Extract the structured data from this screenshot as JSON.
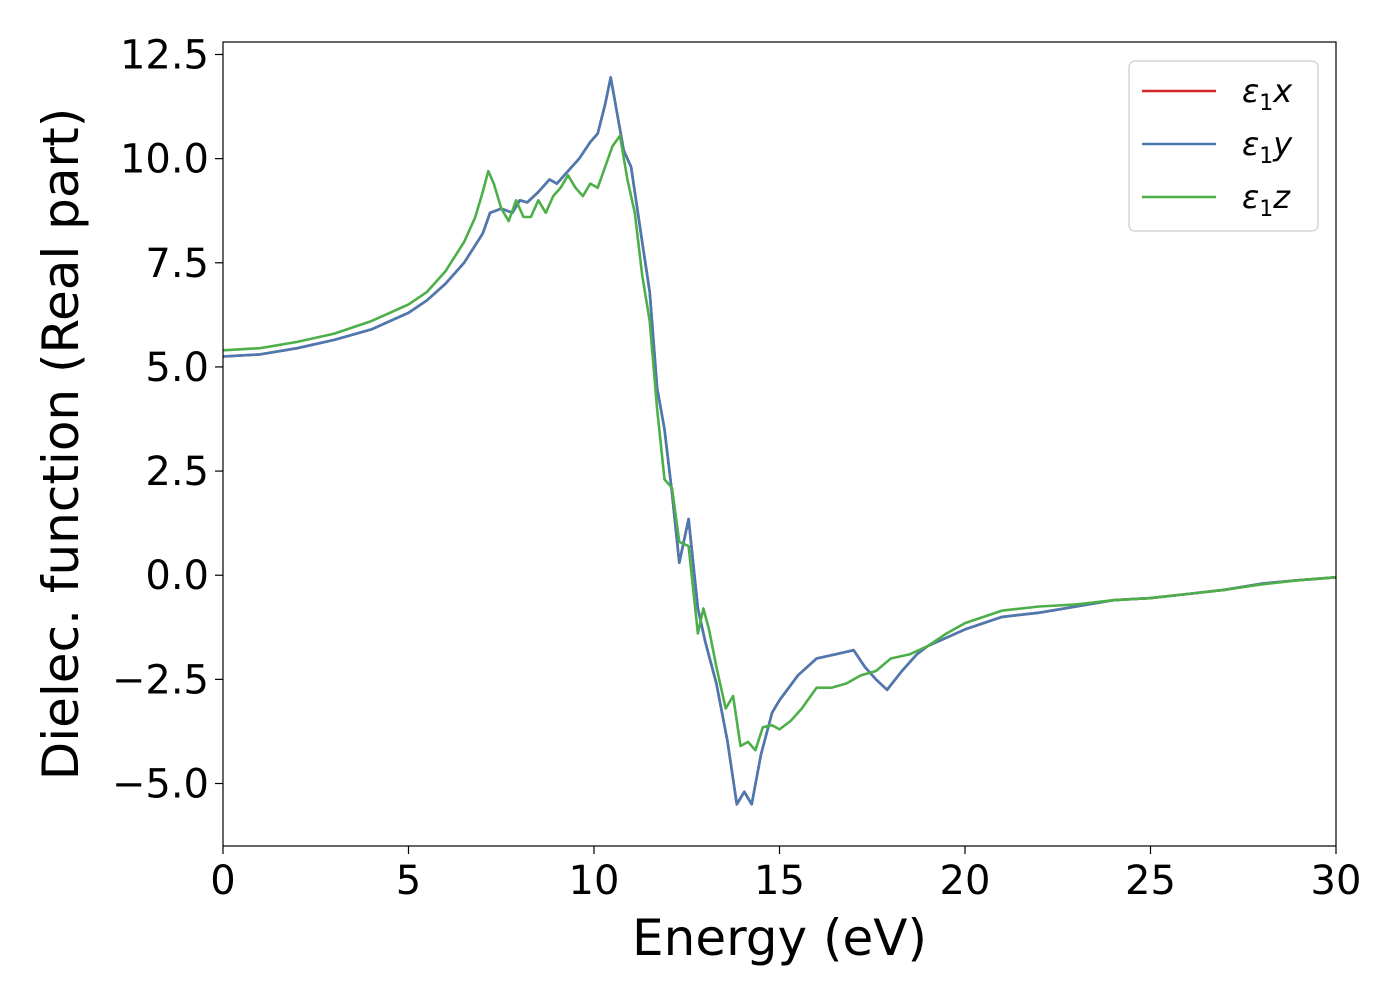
{
  "chart_data": {
    "type": "line",
    "xlabel": "Energy (eV)",
    "ylabel": "Dielec. function (Real part)",
    "xlim": [
      0,
      30
    ],
    "ylim": [
      -6.5,
      12.8
    ],
    "xticks": [
      0,
      5,
      10,
      15,
      20,
      25,
      30
    ],
    "yticks": [
      -5.0,
      -2.5,
      0.0,
      2.5,
      5.0,
      7.5,
      10.0,
      12.5
    ],
    "xtick_labels": [
      "0",
      "5",
      "10",
      "15",
      "20",
      "25",
      "30"
    ],
    "ytick_labels": [
      "−5.0",
      "−2.5",
      "0.0",
      "2.5",
      "5.0",
      "7.5",
      "10.0",
      "12.5"
    ],
    "grid": false,
    "legend": {
      "placement": "top-right",
      "entries": [
        {
          "prefix": "ε",
          "sub": "1",
          "suffix": "x",
          "color": "#d62728"
        },
        {
          "prefix": "ε",
          "sub": "1",
          "suffix": "y",
          "color": "#4a7ab2"
        },
        {
          "prefix": "ε",
          "sub": "1",
          "suffix": "z",
          "color": "#4daf4a"
        }
      ]
    },
    "series": [
      {
        "name": "ε1x",
        "color": "#d62728",
        "x": [
          0,
          1,
          2,
          3,
          4,
          5,
          5.5,
          6,
          6.5,
          7,
          7.2,
          7.5,
          7.8,
          8,
          8.2,
          8.5,
          8.8,
          9,
          9.3,
          9.6,
          9.9,
          10.1,
          10.3,
          10.45,
          10.6,
          10.8,
          11,
          11.3,
          11.5,
          11.7,
          11.9,
          12.1,
          12.3,
          12.55,
          12.8,
          13,
          13.3,
          13.6,
          13.85,
          14.05,
          14.25,
          14.5,
          14.8,
          15,
          15.5,
          16,
          16.5,
          17,
          17.3,
          17.6,
          17.9,
          18.3,
          18.7,
          19,
          19.5,
          20,
          21,
          22,
          23,
          24,
          25,
          26,
          27,
          28,
          29,
          30
        ],
        "y": [
          5.25,
          5.3,
          5.45,
          5.65,
          5.9,
          6.3,
          6.6,
          7.0,
          7.5,
          8.2,
          8.7,
          8.8,
          8.7,
          9.0,
          8.95,
          9.2,
          9.5,
          9.4,
          9.7,
          10.0,
          10.4,
          10.6,
          11.3,
          11.95,
          11.2,
          10.2,
          9.8,
          8.0,
          6.8,
          4.5,
          3.5,
          2.0,
          0.3,
          1.35,
          -0.8,
          -1.6,
          -2.6,
          -4.0,
          -5.5,
          -5.2,
          -5.5,
          -4.3,
          -3.3,
          -3.0,
          -2.4,
          -2.0,
          -1.9,
          -1.8,
          -2.2,
          -2.5,
          -2.75,
          -2.3,
          -1.9,
          -1.7,
          -1.5,
          -1.3,
          -1.0,
          -0.9,
          -0.75,
          -0.6,
          -0.55,
          -0.45,
          -0.35,
          -0.2,
          -0.12,
          -0.05
        ]
      },
      {
        "name": "ε1y",
        "color": "#4a7ab2",
        "x": [
          0,
          1,
          2,
          3,
          4,
          5,
          5.5,
          6,
          6.5,
          7,
          7.2,
          7.5,
          7.8,
          8,
          8.2,
          8.5,
          8.8,
          9,
          9.3,
          9.6,
          9.9,
          10.1,
          10.3,
          10.45,
          10.6,
          10.8,
          11,
          11.3,
          11.5,
          11.7,
          11.9,
          12.1,
          12.3,
          12.55,
          12.8,
          13,
          13.3,
          13.6,
          13.85,
          14.05,
          14.25,
          14.5,
          14.8,
          15,
          15.5,
          16,
          16.5,
          17,
          17.3,
          17.6,
          17.9,
          18.3,
          18.7,
          19,
          19.5,
          20,
          21,
          22,
          23,
          24,
          25,
          26,
          27,
          28,
          29,
          30
        ],
        "y": [
          5.25,
          5.3,
          5.45,
          5.65,
          5.9,
          6.3,
          6.6,
          7.0,
          7.5,
          8.2,
          8.7,
          8.8,
          8.7,
          9.0,
          8.95,
          9.2,
          9.5,
          9.4,
          9.7,
          10.0,
          10.4,
          10.6,
          11.3,
          11.95,
          11.2,
          10.2,
          9.8,
          8.0,
          6.8,
          4.5,
          3.5,
          2.0,
          0.3,
          1.35,
          -0.8,
          -1.6,
          -2.6,
          -4.0,
          -5.5,
          -5.2,
          -5.5,
          -4.3,
          -3.3,
          -3.0,
          -2.4,
          -2.0,
          -1.9,
          -1.8,
          -2.2,
          -2.5,
          -2.75,
          -2.3,
          -1.9,
          -1.7,
          -1.5,
          -1.3,
          -1.0,
          -0.9,
          -0.75,
          -0.6,
          -0.55,
          -0.45,
          -0.35,
          -0.2,
          -0.12,
          -0.05
        ]
      },
      {
        "name": "ε1z",
        "color": "#4daf4a",
        "x": [
          0,
          1,
          2,
          3,
          4,
          5,
          5.5,
          6,
          6.5,
          6.8,
          7.0,
          7.15,
          7.3,
          7.5,
          7.7,
          7.9,
          8.1,
          8.3,
          8.5,
          8.7,
          8.9,
          9.1,
          9.3,
          9.5,
          9.7,
          9.9,
          10.1,
          10.3,
          10.5,
          10.7,
          10.9,
          11.1,
          11.3,
          11.5,
          11.7,
          11.9,
          12.1,
          12.3,
          12.55,
          12.8,
          12.95,
          13.1,
          13.3,
          13.55,
          13.75,
          13.95,
          14.15,
          14.35,
          14.55,
          14.8,
          15,
          15.3,
          15.6,
          16,
          16.4,
          16.8,
          17.2,
          17.6,
          18,
          18.5,
          19,
          19.5,
          20,
          21,
          22,
          23,
          24,
          25,
          26,
          27,
          28,
          29,
          30
        ],
        "y": [
          5.4,
          5.45,
          5.6,
          5.8,
          6.1,
          6.5,
          6.8,
          7.3,
          8.0,
          8.6,
          9.2,
          9.7,
          9.4,
          8.8,
          8.5,
          9.0,
          8.6,
          8.6,
          9.0,
          8.7,
          9.1,
          9.3,
          9.6,
          9.3,
          9.1,
          9.4,
          9.3,
          9.8,
          10.3,
          10.55,
          9.5,
          8.7,
          7.2,
          6.1,
          4.0,
          2.3,
          2.1,
          0.8,
          0.7,
          -1.4,
          -0.8,
          -1.3,
          -2.2,
          -3.2,
          -2.9,
          -4.1,
          -4.0,
          -4.2,
          -3.65,
          -3.6,
          -3.7,
          -3.5,
          -3.2,
          -2.7,
          -2.7,
          -2.6,
          -2.4,
          -2.3,
          -2.0,
          -1.9,
          -1.7,
          -1.4,
          -1.15,
          -0.85,
          -0.75,
          -0.7,
          -0.6,
          -0.55,
          -0.45,
          -0.35,
          -0.22,
          -0.12,
          -0.05
        ]
      }
    ]
  }
}
